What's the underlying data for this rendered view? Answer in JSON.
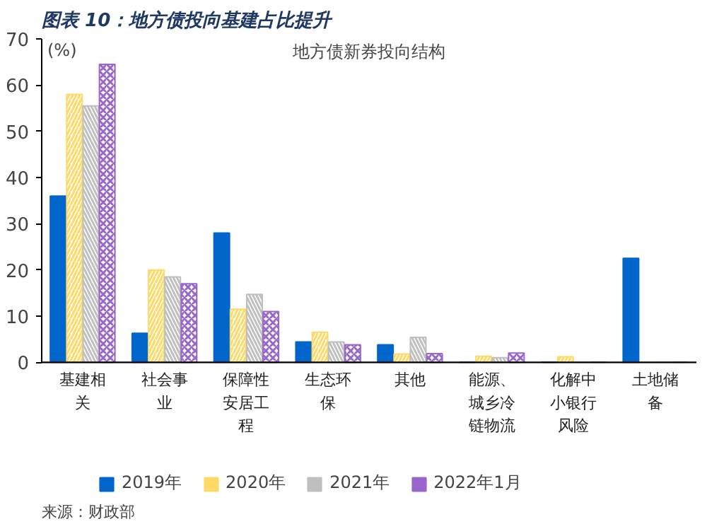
{
  "chart_data": {
    "type": "bar",
    "title": "图表 10：地方债投向基建占比提升",
    "subtitle": "地方债新券投向结构",
    "ylabel": "(%)",
    "categories": [
      "基建相关",
      "社会事业",
      "保障性安居工程",
      "生态环保",
      "其他",
      "能源、城乡冷链物流",
      "化解中小银行风险",
      "土地储备"
    ],
    "series": [
      {
        "name": "2019年",
        "color": "#0066cc",
        "values": [
          36,
          6.3,
          28,
          4.4,
          3.8,
          0,
          0,
          22.5
        ]
      },
      {
        "name": "2020年",
        "color": "#ffd966",
        "values": [
          58,
          20,
          11.5,
          6.5,
          1.8,
          1.3,
          1.2,
          0
        ]
      },
      {
        "name": "2021年",
        "color": "#bfbfbf",
        "values": [
          55.5,
          18.5,
          14.7,
          4.4,
          5.4,
          1,
          null,
          0
        ]
      },
      {
        "name": "2022年1月",
        "color": "#9966cc",
        "values": [
          64.5,
          17,
          11,
          3.8,
          1.9,
          2,
          0,
          0
        ]
      }
    ],
    "ylim": [
      0,
      70
    ],
    "yticks": [
      0,
      10,
      20,
      30,
      40,
      50,
      60,
      70
    ],
    "grid": false,
    "legend": "bottom",
    "annotations": [
      "来源：财政部"
    ]
  }
}
